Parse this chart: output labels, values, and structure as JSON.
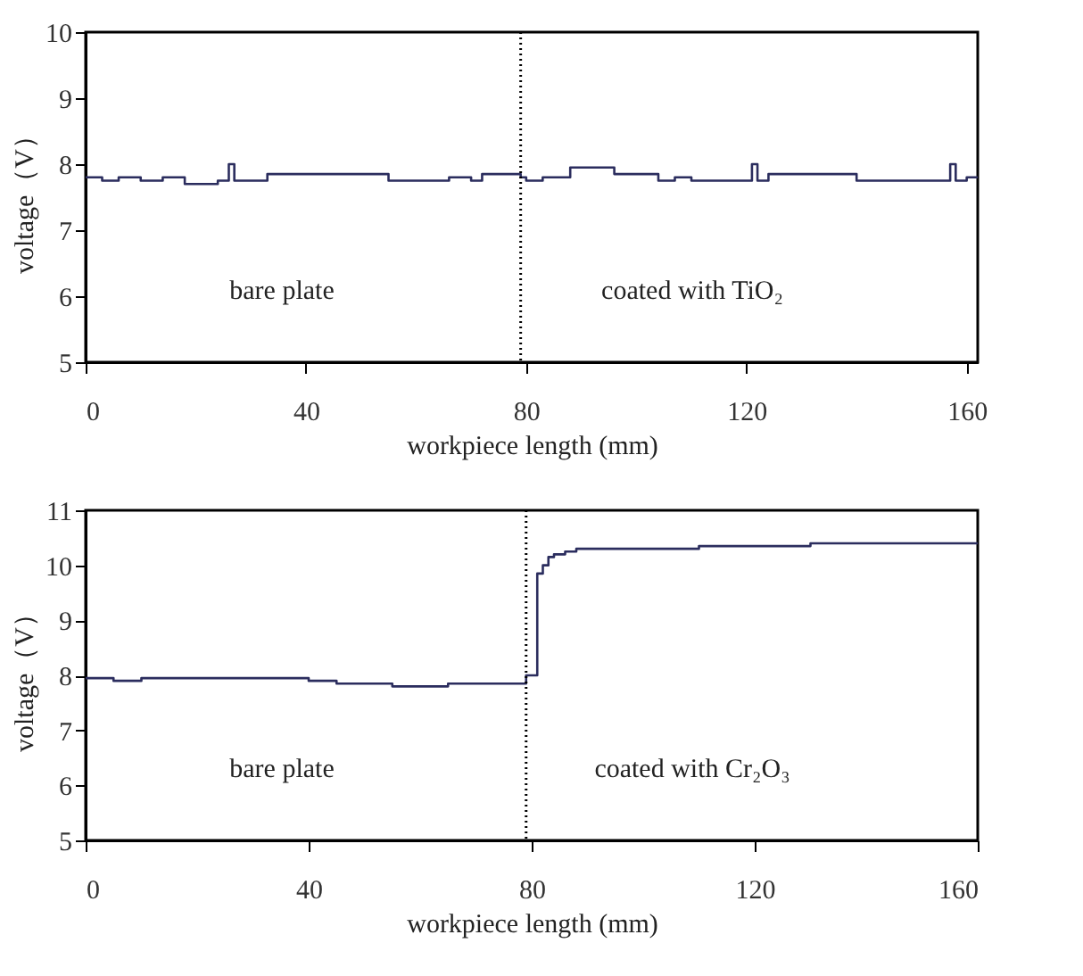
{
  "chart_data": [
    {
      "type": "step",
      "xlabel": "workpiece length (mm)",
      "ylabel": "voltage（V）",
      "annotations": [
        "bare plate",
        "coated with TiO₂"
      ],
      "x": [
        0,
        3,
        6,
        10,
        14,
        18,
        24,
        26,
        27,
        33,
        55,
        62,
        66,
        70,
        72,
        79,
        80,
        83,
        88,
        96,
        104,
        107,
        110,
        114,
        121,
        122,
        124,
        140,
        150,
        155,
        157,
        158,
        160,
        162
      ],
      "series": [
        {
          "color": "#2b2d5e",
          "values": [
            7.8,
            7.75,
            7.8,
            7.75,
            7.8,
            7.7,
            7.75,
            8.0,
            7.75,
            7.85,
            7.75,
            7.75,
            7.8,
            7.75,
            7.85,
            7.8,
            7.75,
            7.8,
            7.95,
            7.85,
            7.75,
            7.8,
            7.75,
            7.75,
            8.0,
            7.75,
            7.85,
            7.75,
            7.75,
            7.75,
            8.0,
            7.75,
            7.8,
            7.8
          ]
        }
      ],
      "xlim": [
        0,
        162
      ],
      "xticks": [
        0,
        40,
        80,
        120,
        160
      ],
      "ylim": [
        5,
        10
      ],
      "yticks": [
        5,
        6,
        7,
        8,
        9,
        10
      ],
      "grid": false,
      "line_style": "solid",
      "ref_lines": [
        {
          "axis": "x",
          "value": 79,
          "color": "#000000",
          "line_style": "dotted"
        }
      ]
    },
    {
      "type": "step",
      "xlabel": "workpiece length (mm)",
      "ylabel": "voltage（V）",
      "annotations": [
        "bare plate",
        "coated with Cr₂O₃"
      ],
      "x": [
        0,
        5,
        10,
        20,
        30,
        40,
        45,
        55,
        65,
        75,
        79,
        81,
        82,
        83,
        84,
        86,
        88,
        91,
        100,
        110,
        120,
        130,
        140,
        150,
        160
      ],
      "series": [
        {
          "color": "#2b2d5e",
          "values": [
            7.95,
            7.9,
            7.95,
            7.95,
            7.95,
            7.9,
            7.85,
            7.8,
            7.85,
            7.85,
            8.0,
            9.85,
            10.0,
            10.15,
            10.2,
            10.25,
            10.3,
            10.3,
            10.3,
            10.35,
            10.35,
            10.4,
            10.4,
            10.4,
            10.4
          ]
        }
      ],
      "xlim": [
        0,
        160
      ],
      "xticks": [
        0,
        40,
        80,
        120,
        160
      ],
      "ylim": [
        5,
        11
      ],
      "yticks": [
        5,
        6,
        7,
        8,
        9,
        10,
        11
      ],
      "grid": false,
      "line_style": "solid",
      "ref_lines": [
        {
          "axis": "x",
          "value": 79,
          "color": "#000000",
          "line_style": "dotted"
        }
      ]
    }
  ]
}
